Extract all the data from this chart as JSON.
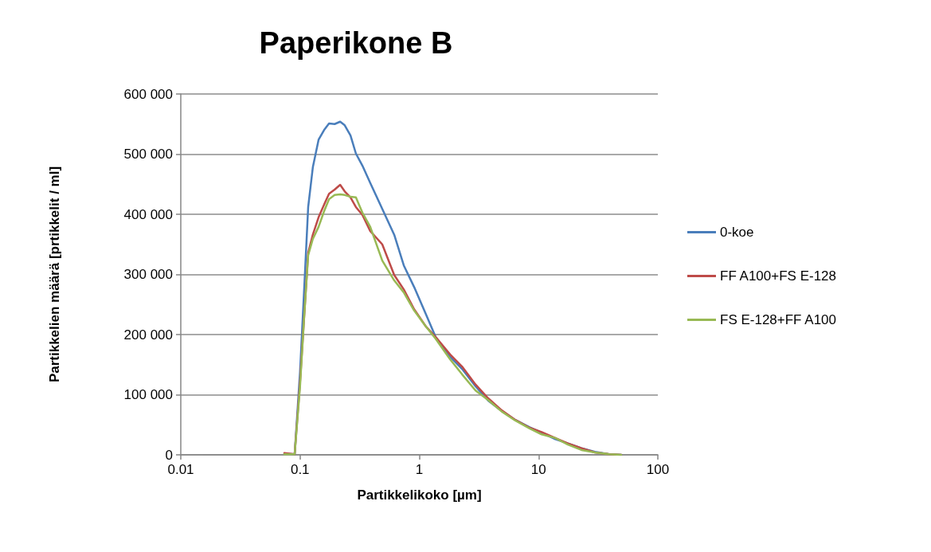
{
  "chart_data": {
    "type": "line",
    "title": "Paperikone B",
    "xlabel": "Partikkelikoko [µm]",
    "ylabel": "Partikkelien määrä [prtikkelit / ml]",
    "x": [
      0.0738,
      0.0901,
      0.1,
      0.108,
      0.117,
      0.128,
      0.143,
      0.159,
      0.175,
      0.195,
      0.217,
      0.237,
      0.265,
      0.294,
      0.333,
      0.388,
      0.489,
      0.616,
      0.741,
      0.905,
      1.14,
      1.37,
      1.81,
      2.28,
      2.96,
      3.78,
      4.91,
      6.38,
      8.41,
      10.6,
      13.8,
      17.6,
      22.9,
      29.7,
      39.1,
      49.3
    ],
    "series": [
      {
        "name": "0-koe",
        "color": "#4a7ebb",
        "values": [
          2000,
          1000,
          138000,
          270000,
          412000,
          478000,
          524000,
          540000,
          551000,
          550000,
          554000,
          548000,
          531000,
          501000,
          481000,
          452000,
          409000,
          366000,
          315000,
          279000,
          233000,
          196000,
          163000,
          143000,
          114000,
          90000,
          73000,
          58000,
          46000,
          37000,
          26000,
          19000,
          11000,
          5000,
          1000,
          0
        ]
      },
      {
        "name": "FF A100+FS E-128",
        "color": "#be4b48",
        "values": [
          3000,
          1000,
          121000,
          226000,
          336000,
          366000,
          395000,
          416000,
          434000,
          441000,
          449000,
          438000,
          428000,
          412000,
          399000,
          372000,
          350000,
          299000,
          275000,
          242000,
          213000,
          196000,
          167000,
          147000,
          117000,
          94000,
          74000,
          58000,
          45000,
          38000,
          28000,
          19000,
          11000,
          4000,
          1000,
          0
        ]
      },
      {
        "name": "FS E-128+FF A100",
        "color": "#98b954",
        "values": [
          1000,
          1000,
          114000,
          226000,
          332000,
          359000,
          379000,
          405000,
          425000,
          432000,
          433000,
          432000,
          429000,
          428000,
          403000,
          379000,
          323000,
          290000,
          270000,
          240000,
          213000,
          193000,
          159000,
          134000,
          107000,
          91000,
          72000,
          57000,
          44000,
          34000,
          28000,
          17000,
          8000,
          4000,
          1000,
          0
        ]
      }
    ],
    "log": "x",
    "xlim": [
      0.01,
      100
    ],
    "xticks": [
      0.01,
      0.1,
      1,
      10,
      100
    ],
    "ylim": [
      0,
      600000
    ],
    "yticks": [
      0,
      {
        "value": 100000,
        "label": "100 000"
      },
      {
        "value": 200000,
        "label": "200 000"
      },
      {
        "value": 300000,
        "label": "300 000"
      },
      {
        "value": 400000,
        "label": "400 000"
      },
      {
        "value": 500000,
        "label": "500 000"
      },
      {
        "value": 600000,
        "label": "600 000"
      }
    ],
    "grid": "y",
    "legend": "right",
    "marker": "none",
    "line_style": "solid"
  }
}
